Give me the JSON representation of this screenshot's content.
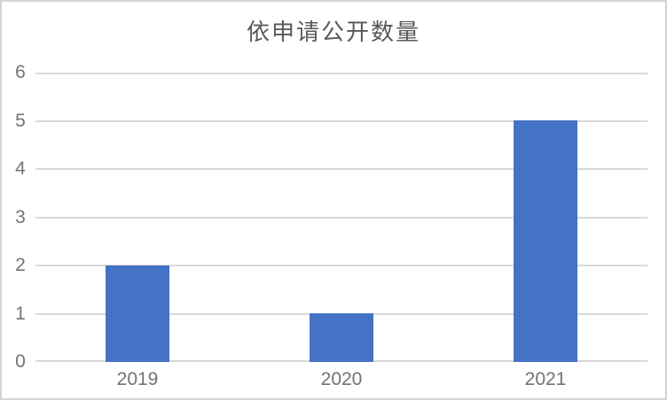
{
  "window": {
    "background_color": "#ffffff",
    "border_color": "#d4d4d4"
  },
  "chart_data": {
    "type": "bar",
    "title": "依申请公开数量",
    "categories": [
      "2019",
      "2020",
      "2021"
    ],
    "values": [
      2,
      1,
      5
    ],
    "xlabel": "",
    "ylabel": "",
    "ylim": [
      0,
      6
    ],
    "yticks": [
      0,
      1,
      2,
      3,
      4,
      5,
      6
    ],
    "grid": "horizontal",
    "legend": "none",
    "bar_color": "#4472c4",
    "gridline_color": "#d9d9d9",
    "title_color": "#595959",
    "tick_label_color": "#737373"
  }
}
